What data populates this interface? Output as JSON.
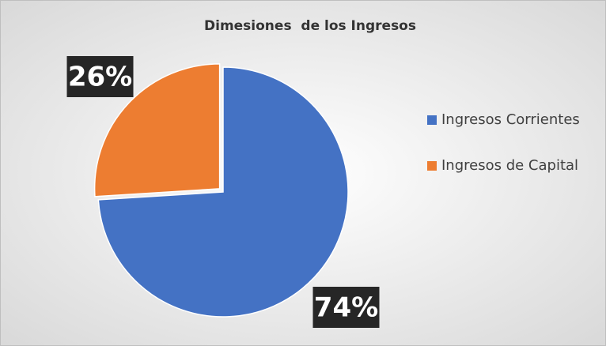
{
  "chart_data": {
    "type": "pie",
    "title": "Dimesiones  de los Ingresos",
    "categories": [
      "Ingresos Corrientes",
      "Ingresos de Capital"
    ],
    "values": [
      74,
      26
    ],
    "value_labels": [
      "74%",
      "26%"
    ],
    "colors": [
      "#4472c4",
      "#ed7d31"
    ],
    "legend": "right"
  }
}
